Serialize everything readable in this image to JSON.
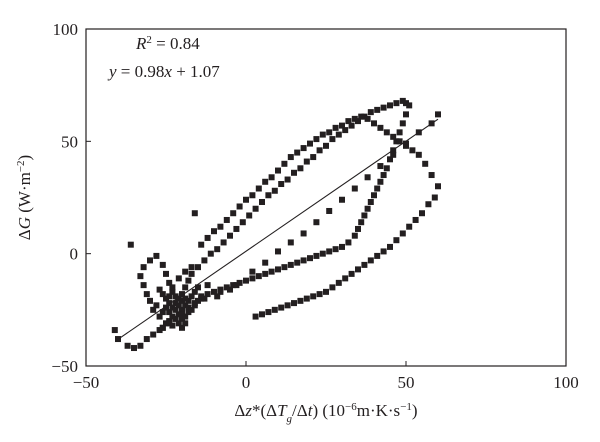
{
  "chart_data": {
    "type": "scatter",
    "xlim": [
      -50,
      100
    ],
    "ylim": [
      -50,
      100
    ],
    "xticks": [
      -50,
      0,
      50,
      100
    ],
    "yticks": [
      -50,
      0,
      50,
      100
    ],
    "xtick_labels": [
      "−50",
      "0",
      "50",
      "100"
    ],
    "ytick_labels": [
      "−50",
      "0",
      "50",
      "100"
    ],
    "xlabel": "Δz*(ΔTg/Δt) (10−6m·K·s−1)",
    "ylabel": "ΔG (W·m−2)",
    "grid": false,
    "annotations": {
      "r2": "R2 = 0.84",
      "equation": "y = 0.98x + 1.07"
    },
    "fit_line": {
      "slope": 0.98,
      "intercept": 1.07,
      "x_range": [
        -40,
        60
      ]
    },
    "marker": {
      "shape": "square",
      "color": "#231f20"
    },
    "points": [
      [
        -41,
        -34
      ],
      [
        -40,
        -38
      ],
      [
        -37,
        -41
      ],
      [
        -35,
        -42
      ],
      [
        -33,
        -41
      ],
      [
        -31,
        -38
      ],
      [
        -29,
        -36
      ],
      [
        -27,
        -34
      ],
      [
        -26,
        -33
      ],
      [
        -25,
        -31
      ],
      [
        -24,
        -30
      ],
      [
        -23,
        -32
      ],
      [
        -22,
        -29
      ],
      [
        -21,
        -27
      ],
      [
        -20,
        -25
      ],
      [
        -19,
        -23
      ],
      [
        -18,
        -21
      ],
      [
        -17,
        -19
      ],
      [
        -16,
        -17
      ],
      [
        -15,
        -15
      ],
      [
        -24,
        -26
      ],
      [
        -23,
        -24
      ],
      [
        -22,
        -22
      ],
      [
        -21,
        -20
      ],
      [
        -27,
        -28
      ],
      [
        -26,
        -26
      ],
      [
        -25,
        -24
      ],
      [
        -24,
        -22
      ],
      [
        -29,
        -25
      ],
      [
        -28,
        -23
      ],
      [
        -30,
        -21
      ],
      [
        -31,
        -18
      ],
      [
        -32,
        -14
      ],
      [
        -33,
        -10
      ],
      [
        -32,
        -6
      ],
      [
        -30,
        -3
      ],
      [
        -28,
        -1
      ],
      [
        -26,
        -5
      ],
      [
        -25,
        -9
      ],
      [
        -24,
        -13
      ],
      [
        -23,
        -17
      ],
      [
        -22,
        -19
      ],
      [
        -20,
        -18
      ],
      [
        -19,
        -15
      ],
      [
        -18,
        -12
      ],
      [
        -17,
        -9
      ],
      [
        -15,
        -6
      ],
      [
        -13,
        -3
      ],
      [
        -11,
        0
      ],
      [
        -9,
        2
      ],
      [
        -7,
        5
      ],
      [
        -5,
        8
      ],
      [
        -3,
        11
      ],
      [
        -1,
        14
      ],
      [
        1,
        17
      ],
      [
        3,
        20
      ],
      [
        5,
        23
      ],
      [
        7,
        26
      ],
      [
        9,
        28
      ],
      [
        11,
        31
      ],
      [
        13,
        33
      ],
      [
        15,
        36
      ],
      [
        17,
        38
      ],
      [
        19,
        41
      ],
      [
        21,
        43
      ],
      [
        23,
        46
      ],
      [
        25,
        48
      ],
      [
        27,
        51
      ],
      [
        29,
        53
      ],
      [
        31,
        55
      ],
      [
        33,
        57
      ],
      [
        35,
        59
      ],
      [
        37,
        61
      ],
      [
        39,
        63
      ],
      [
        41,
        64
      ],
      [
        43,
        65
      ],
      [
        45,
        66
      ],
      [
        47,
        67
      ],
      [
        49,
        68
      ],
      [
        50,
        67
      ],
      [
        51,
        66
      ],
      [
        50,
        62
      ],
      [
        49,
        58
      ],
      [
        48,
        54
      ],
      [
        47,
        50
      ],
      [
        46,
        46
      ],
      [
        45,
        42
      ],
      [
        44,
        38
      ],
      [
        43,
        35
      ],
      [
        42,
        32
      ],
      [
        41,
        29
      ],
      [
        40,
        26
      ],
      [
        39,
        23
      ],
      [
        38,
        20
      ],
      [
        37,
        17
      ],
      [
        36,
        14
      ],
      [
        35,
        11
      ],
      [
        34,
        8
      ],
      [
        32,
        5
      ],
      [
        30,
        3
      ],
      [
        28,
        2
      ],
      [
        26,
        1
      ],
      [
        24,
        0
      ],
      [
        22,
        -1
      ],
      [
        20,
        -2
      ],
      [
        18,
        -3
      ],
      [
        16,
        -4
      ],
      [
        14,
        -5
      ],
      [
        12,
        -6
      ],
      [
        10,
        -7
      ],
      [
        8,
        -8
      ],
      [
        6,
        -9
      ],
      [
        4,
        -10
      ],
      [
        2,
        -11
      ],
      [
        0,
        -12
      ],
      [
        -2,
        -13
      ],
      [
        -4,
        -14
      ],
      [
        -6,
        -15
      ],
      [
        -8,
        -16
      ],
      [
        -10,
        -17
      ],
      [
        -12,
        -18
      ],
      [
        -14,
        -20
      ],
      [
        -16,
        -22
      ],
      [
        -18,
        -24
      ],
      [
        -20,
        -27
      ],
      [
        -22,
        -29
      ],
      [
        -24,
        -31
      ],
      [
        -26,
        -33
      ],
      [
        -21,
        -31
      ],
      [
        -20,
        -29
      ],
      [
        -19,
        -28
      ],
      [
        -18,
        -26
      ],
      [
        -17,
        -25
      ],
      [
        -16,
        -23
      ],
      [
        -15,
        -21
      ],
      [
        -14,
        -19
      ],
      [
        -20,
        -33
      ],
      [
        -19,
        -31
      ],
      [
        -22,
        -25
      ],
      [
        -21,
        -23
      ],
      [
        -20,
        -21
      ],
      [
        -19,
        -20
      ],
      [
        -23,
        -28
      ],
      [
        -25,
        -20
      ],
      [
        -26,
        -18
      ],
      [
        -27,
        -16
      ],
      [
        -24,
        -19
      ],
      [
        -23,
        -15
      ],
      [
        -21,
        -11
      ],
      [
        -19,
        -8
      ],
      [
        -17,
        -6
      ],
      [
        -14,
        4
      ],
      [
        -12,
        7
      ],
      [
        -10,
        10
      ],
      [
        -8,
        12
      ],
      [
        -6,
        15
      ],
      [
        -4,
        18
      ],
      [
        -2,
        21
      ],
      [
        0,
        24
      ],
      [
        2,
        26
      ],
      [
        4,
        29
      ],
      [
        6,
        32
      ],
      [
        8,
        34
      ],
      [
        10,
        37
      ],
      [
        12,
        40
      ],
      [
        14,
        43
      ],
      [
        16,
        45
      ],
      [
        18,
        47
      ],
      [
        20,
        49
      ],
      [
        22,
        51
      ],
      [
        24,
        53
      ],
      [
        26,
        54
      ],
      [
        28,
        56
      ],
      [
        30,
        57
      ],
      [
        32,
        59
      ],
      [
        34,
        60
      ],
      [
        36,
        61
      ],
      [
        38,
        60
      ],
      [
        40,
        58
      ],
      [
        42,
        56
      ],
      [
        44,
        54
      ],
      [
        46,
        52
      ],
      [
        48,
        50
      ],
      [
        50,
        48
      ],
      [
        52,
        46
      ],
      [
        54,
        44
      ],
      [
        56,
        40
      ],
      [
        58,
        35
      ],
      [
        60,
        30
      ],
      [
        59,
        25
      ],
      [
        57,
        22
      ],
      [
        55,
        18
      ],
      [
        53,
        15
      ],
      [
        51,
        12
      ],
      [
        49,
        9
      ],
      [
        47,
        6
      ],
      [
        45,
        3
      ],
      [
        43,
        1
      ],
      [
        41,
        -1
      ],
      [
        39,
        -3
      ],
      [
        37,
        -5
      ],
      [
        35,
        -7
      ],
      [
        33,
        -9
      ],
      [
        31,
        -11
      ],
      [
        29,
        -13
      ],
      [
        27,
        -15
      ],
      [
        25,
        -17
      ],
      [
        23,
        -18
      ],
      [
        21,
        -19
      ],
      [
        19,
        -20
      ],
      [
        17,
        -21
      ],
      [
        15,
        -22
      ],
      [
        13,
        -23
      ],
      [
        11,
        -24
      ],
      [
        9,
        -25
      ],
      [
        7,
        -26
      ],
      [
        5,
        -27
      ],
      [
        3,
        -28
      ],
      [
        -16,
        18
      ],
      [
        -36,
        4
      ],
      [
        -8,
        -17
      ],
      [
        -12,
        -14
      ],
      [
        -13,
        -20
      ],
      [
        -9,
        -19
      ],
      [
        -5,
        -16
      ],
      [
        -3,
        -14
      ],
      [
        2,
        -8
      ],
      [
        6,
        -4
      ],
      [
        10,
        1
      ],
      [
        14,
        5
      ],
      [
        18,
        9
      ],
      [
        22,
        14
      ],
      [
        26,
        19
      ],
      [
        30,
        24
      ],
      [
        34,
        29
      ],
      [
        38,
        34
      ],
      [
        42,
        39
      ],
      [
        46,
        44
      ],
      [
        50,
        49
      ],
      [
        54,
        54
      ],
      [
        58,
        58
      ],
      [
        60,
        62
      ]
    ]
  }
}
